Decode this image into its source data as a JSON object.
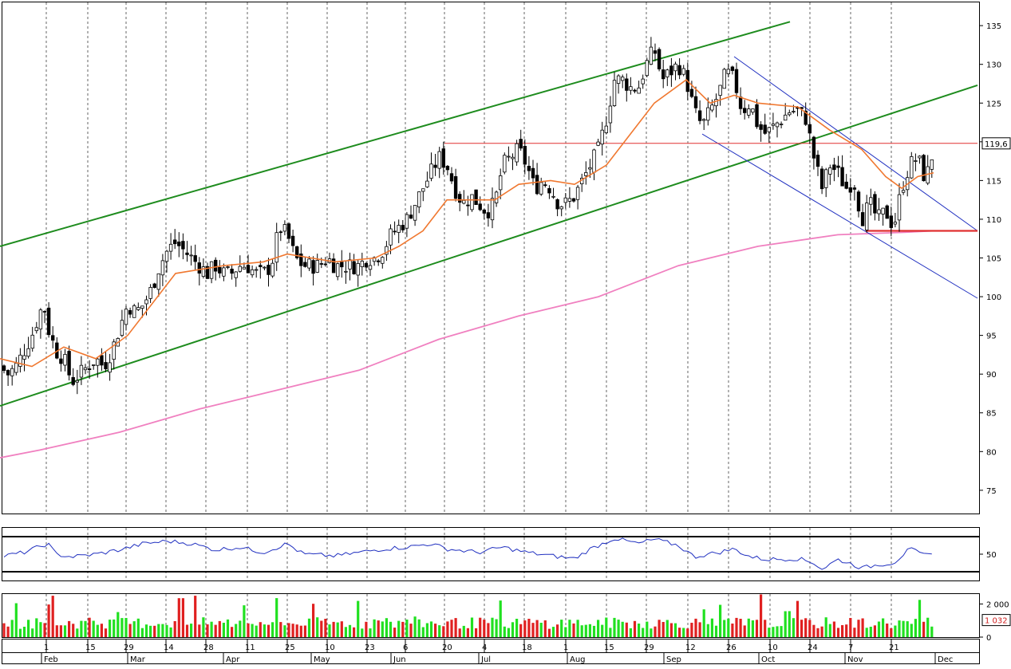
{
  "chart_data": [
    {
      "panel": "price",
      "type": "candlestick",
      "ylim": [
        72,
        138
      ],
      "y_ticks": [
        75,
        80,
        85,
        90,
        95,
        100,
        105,
        110,
        115,
        120,
        125,
        130,
        135
      ],
      "last_value_label": "119,6",
      "grid": "vertical dashed",
      "colors": {
        "sma_short": "#f07830",
        "sma_long": "#f080c0",
        "channel": "#1e8c1e",
        "down_channel": "#2030c0",
        "level_lines": "#e03030"
      },
      "price_keypoints": [
        [
          0,
          91
        ],
        [
          10,
          90
        ],
        [
          20,
          91
        ],
        [
          30,
          93
        ],
        [
          40,
          95
        ],
        [
          50,
          98
        ],
        [
          55,
          99
        ],
        [
          60,
          96
        ],
        [
          70,
          93
        ],
        [
          80,
          92
        ],
        [
          90,
          89
        ],
        [
          100,
          90
        ],
        [
          110,
          91
        ],
        [
          120,
          92
        ],
        [
          130,
          91
        ],
        [
          140,
          93
        ],
        [
          150,
          96
        ],
        [
          160,
          99
        ],
        [
          170,
          98
        ],
        [
          180,
          99
        ],
        [
          190,
          101
        ],
        [
          200,
          104
        ],
        [
          210,
          106
        ],
        [
          220,
          107
        ],
        [
          230,
          106
        ],
        [
          240,
          105
        ],
        [
          250,
          104
        ],
        [
          260,
          103
        ],
        [
          270,
          104
        ],
        [
          280,
          103
        ],
        [
          290,
          103
        ],
        [
          300,
          104
        ],
        [
          310,
          104
        ],
        [
          320,
          103
        ],
        [
          330,
          103
        ],
        [
          340,
          104
        ],
        [
          350,
          109
        ],
        [
          360,
          108
        ],
        [
          370,
          105
        ],
        [
          380,
          104
        ],
        [
          390,
          104
        ],
        [
          400,
          104
        ],
        [
          410,
          105
        ],
        [
          420,
          104
        ],
        [
          430,
          104
        ],
        [
          440,
          104
        ],
        [
          450,
          104
        ],
        [
          460,
          105
        ],
        [
          470,
          105
        ],
        [
          480,
          106
        ],
        [
          490,
          108
        ],
        [
          500,
          109
        ],
        [
          510,
          110
        ],
        [
          520,
          112
        ],
        [
          530,
          114
        ],
        [
          540,
          116
        ],
        [
          550,
          118
        ],
        [
          560,
          117
        ],
        [
          570,
          114
        ],
        [
          580,
          112
        ],
        [
          590,
          113
        ],
        [
          600,
          112
        ],
        [
          610,
          111
        ],
        [
          620,
          112
        ],
        [
          630,
          117
        ],
        [
          640,
          118
        ],
        [
          650,
          119
        ],
        [
          660,
          117
        ],
        [
          670,
          114
        ],
        [
          680,
          115
        ],
        [
          690,
          114
        ],
        [
          700,
          112
        ],
        [
          710,
          112
        ],
        [
          720,
          113
        ],
        [
          730,
          115
        ],
        [
          740,
          117
        ],
        [
          750,
          119
        ],
        [
          760,
          123
        ],
        [
          770,
          128
        ],
        [
          780,
          128
        ],
        [
          790,
          127
        ],
        [
          800,
          127
        ],
        [
          810,
          130
        ],
        [
          820,
          132
        ],
        [
          830,
          128
        ],
        [
          840,
          129
        ],
        [
          850,
          130
        ],
        [
          860,
          128
        ],
        [
          870,
          124
        ],
        [
          880,
          122
        ],
        [
          890,
          124
        ],
        [
          900,
          126
        ],
        [
          910,
          129
        ],
        [
          920,
          128
        ],
        [
          930,
          124
        ],
        [
          940,
          125
        ],
        [
          950,
          122
        ],
        [
          960,
          121
        ],
        [
          970,
          122
        ],
        [
          980,
          123
        ],
        [
          990,
          124
        ],
        [
          1000,
          124
        ],
        [
          1010,
          123
        ],
        [
          1020,
          118
        ],
        [
          1030,
          114
        ],
        [
          1040,
          117
        ],
        [
          1050,
          116
        ],
        [
          1060,
          114
        ],
        [
          1070,
          115
        ],
        [
          1080,
          110
        ],
        [
          1090,
          112
        ],
        [
          1100,
          110
        ],
        [
          1110,
          111
        ],
        [
          1120,
          109
        ],
        [
          1130,
          114
        ],
        [
          1140,
          117
        ],
        [
          1150,
          118
        ],
        [
          1160,
          115
        ],
        [
          1170,
          119
        ]
      ],
      "sma_short_keypoints": [
        [
          0,
          92
        ],
        [
          40,
          91
        ],
        [
          80,
          93.5
        ],
        [
          120,
          92
        ],
        [
          160,
          95
        ],
        [
          220,
          103
        ],
        [
          280,
          104
        ],
        [
          330,
          104.5
        ],
        [
          360,
          105.5
        ],
        [
          420,
          104.5
        ],
        [
          470,
          105
        ],
        [
          500,
          106.5
        ],
        [
          530,
          108.5
        ],
        [
          560,
          112.5
        ],
        [
          590,
          112.5
        ],
        [
          620,
          112.5
        ],
        [
          650,
          114.5
        ],
        [
          690,
          115
        ],
        [
          720,
          114.5
        ],
        [
          760,
          117
        ],
        [
          790,
          121
        ],
        [
          820,
          125
        ],
        [
          860,
          128
        ],
        [
          890,
          125
        ],
        [
          920,
          126
        ],
        [
          950,
          125
        ],
        [
          1000,
          124.5
        ],
        [
          1040,
          121.5
        ],
        [
          1080,
          119
        ],
        [
          1110,
          115.5
        ],
        [
          1130,
          114
        ],
        [
          1150,
          115.5
        ],
        [
          1170,
          116
        ]
      ],
      "sma_long_keypoints": [
        [
          0,
          79.2
        ],
        [
          50,
          80.2
        ],
        [
          150,
          82.5
        ],
        [
          250,
          85.5
        ],
        [
          350,
          88
        ],
        [
          450,
          90.5
        ],
        [
          550,
          94.5
        ],
        [
          650,
          97.5
        ],
        [
          750,
          100
        ],
        [
          850,
          104
        ],
        [
          950,
          106.5
        ],
        [
          1050,
          108
        ],
        [
          1130,
          108.3
        ],
        [
          1170,
          108.5
        ]
      ],
      "lines": [
        {
          "name": "upper-channel",
          "from": [
            0,
            106.5
          ],
          "to": [
            990,
            135.5
          ]
        },
        {
          "name": "lower-channel",
          "from": [
            0,
            85.9
          ],
          "to": [
            1225,
            127.3
          ]
        },
        {
          "name": "down-channel-upper",
          "from": [
            920,
            131
          ],
          "to": [
            1225,
            108.5
          ]
        },
        {
          "name": "down-channel-lower",
          "from": [
            880,
            121
          ],
          "to": [
            1225,
            99.8
          ]
        },
        {
          "name": "resistance",
          "from": [
            557,
            119.8
          ],
          "to": [
            1225,
            119.8
          ]
        },
        {
          "name": "support",
          "from": [
            1085,
            108.5
          ],
          "to": [
            1225,
            108.5
          ]
        }
      ]
    },
    {
      "panel": "oscillator",
      "type": "line",
      "ylim": [
        20,
        80
      ],
      "y_ticks": [
        50
      ],
      "upper_band": 70,
      "lower_band": 30,
      "color": "#2030c0",
      "keypoints": [
        [
          0,
          47
        ],
        [
          30,
          52
        ],
        [
          60,
          62
        ],
        [
          70,
          50
        ],
        [
          90,
          47
        ],
        [
          120,
          50
        ],
        [
          150,
          55
        ],
        [
          180,
          62
        ],
        [
          210,
          65
        ],
        [
          240,
          62
        ],
        [
          270,
          55
        ],
        [
          300,
          58
        ],
        [
          330,
          52
        ],
        [
          360,
          62
        ],
        [
          380,
          50
        ],
        [
          420,
          48
        ],
        [
          450,
          52
        ],
        [
          480,
          56
        ],
        [
          510,
          58
        ],
        [
          540,
          62
        ],
        [
          560,
          56
        ],
        [
          600,
          52
        ],
        [
          630,
          58
        ],
        [
          660,
          52
        ],
        [
          700,
          47
        ],
        [
          720,
          45
        ],
        [
          740,
          56
        ],
        [
          770,
          68
        ],
        [
          800,
          62
        ],
        [
          820,
          67
        ],
        [
          850,
          60
        ],
        [
          870,
          47
        ],
        [
          900,
          52
        ],
        [
          920,
          56
        ],
        [
          940,
          47
        ],
        [
          960,
          44
        ],
        [
          1000,
          45
        ],
        [
          1020,
          40
        ],
        [
          1030,
          33
        ],
        [
          1050,
          44
        ],
        [
          1070,
          38
        ],
        [
          1080,
          34
        ],
        [
          1100,
          38
        ],
        [
          1120,
          40
        ],
        [
          1140,
          56
        ],
        [
          1160,
          48
        ],
        [
          1170,
          54
        ]
      ]
    },
    {
      "panel": "volume",
      "type": "bar",
      "ylim": [
        0,
        2600
      ],
      "y_ticks": [
        "2 000",
        "0"
      ],
      "last_value_label": "1 032",
      "colors": {
        "up": "#20e020",
        "down": "#e02020"
      }
    }
  ],
  "x_axis": {
    "day_ticks": [
      "1",
      "15",
      "29",
      "14",
      "28",
      "11",
      "25",
      "10",
      "23",
      "6",
      "20",
      "4",
      "18",
      "1",
      "15",
      "29",
      "12",
      "26",
      "10",
      "24",
      "7",
      "21"
    ],
    "month_labels": [
      "Feb",
      "Mar",
      "Apr",
      "May",
      "Jun",
      "Jul",
      "Aug",
      "Sep",
      "Oct",
      "Nov",
      "Dec"
    ]
  }
}
